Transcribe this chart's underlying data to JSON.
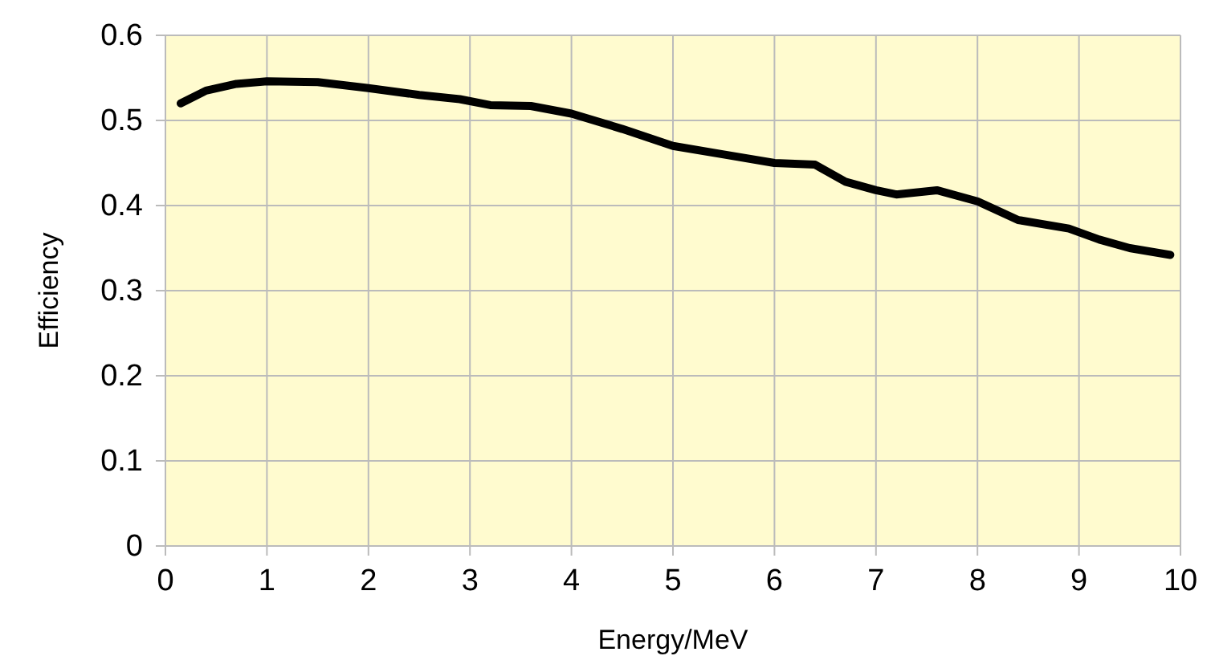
{
  "chart_data": {
    "type": "line",
    "xlabel": "Energy/MeV",
    "ylabel": "Efficiency",
    "series": [
      {
        "color": "#000000",
        "x": [
          0.15,
          0.4,
          0.7,
          1.0,
          1.5,
          2.0,
          2.5,
          2.9,
          3.2,
          3.6,
          4.0,
          4.5,
          5.0,
          5.5,
          6.0,
          6.4,
          6.7,
          7.0,
          7.2,
          7.6,
          8.0,
          8.4,
          8.9,
          9.2,
          9.5,
          9.9
        ],
        "values": [
          0.52,
          0.535,
          0.543,
          0.546,
          0.545,
          0.538,
          0.53,
          0.525,
          0.518,
          0.517,
          0.508,
          0.49,
          0.47,
          0.46,
          0.45,
          0.448,
          0.428,
          0.418,
          0.413,
          0.418,
          0.405,
          0.383,
          0.373,
          0.36,
          0.35,
          0.342
        ]
      }
    ],
    "xlim": [
      0,
      10
    ],
    "xticks": [
      0,
      1,
      2,
      3,
      4,
      5,
      6,
      7,
      8,
      9,
      10
    ],
    "ylim": [
      0,
      0.6
    ],
    "yticks": [
      0,
      0.1,
      0.2,
      0.3,
      0.4,
      0.5,
      0.6
    ],
    "grid": true,
    "marker": "none",
    "line_style": "solid"
  }
}
